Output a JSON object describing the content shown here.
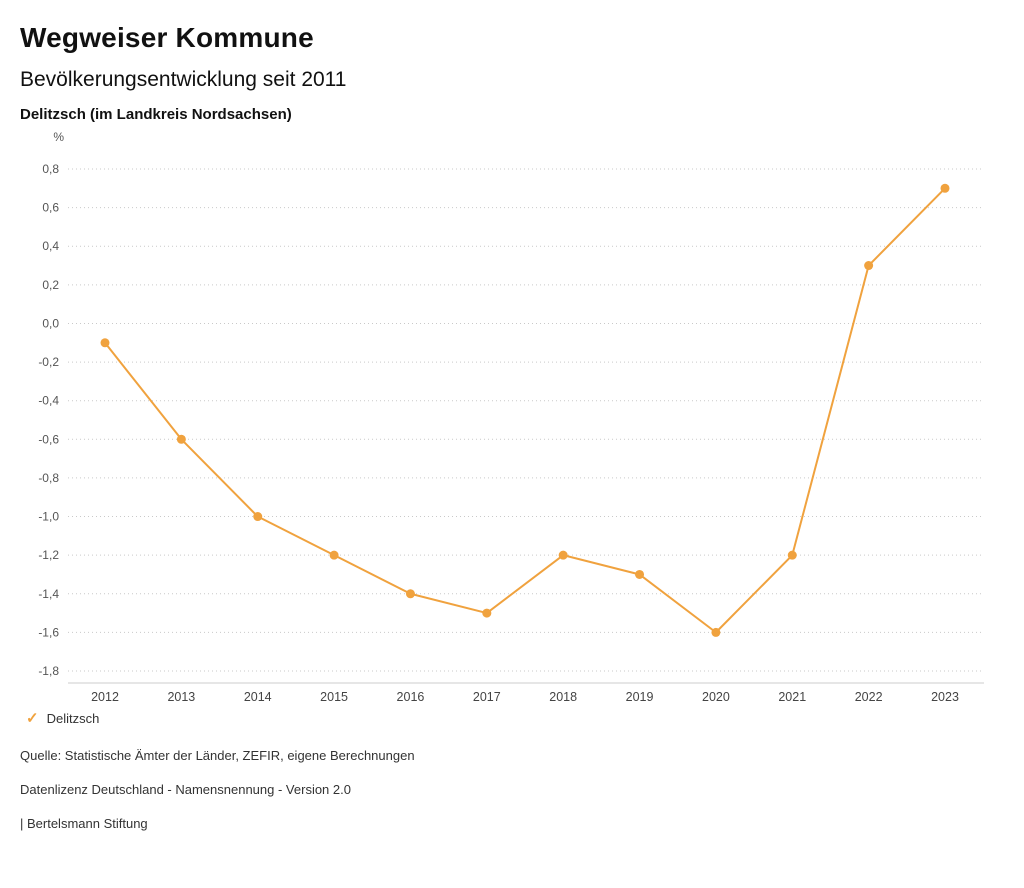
{
  "header": {
    "title": "Wegweiser Kommune",
    "subtitle": "Bevölkerungsentwicklung seit 2011",
    "location": "Delitzsch (im Landkreis Nordsachsen)"
  },
  "chart_data": {
    "type": "line",
    "title": "Bevölkerungsentwicklung seit 2011",
    "unit_label": "%",
    "categories": [
      "2012",
      "2013",
      "2014",
      "2015",
      "2016",
      "2017",
      "2018",
      "2019",
      "2020",
      "2021",
      "2022",
      "2023"
    ],
    "series": [
      {
        "name": "Delitzsch",
        "values": [
          -0.1,
          -0.6,
          -1.0,
          -1.2,
          -1.4,
          -1.5,
          -1.2,
          -1.3,
          -1.6,
          -1.2,
          0.3,
          0.7
        ]
      }
    ],
    "ylim": [
      -1.8,
      0.8
    ],
    "ytick_step": 0.2,
    "grid": true,
    "legend_position": "bottom",
    "line_color": "#f0a23e",
    "grid_color": "#c9c9c9"
  },
  "icons": {
    "check": "✓"
  },
  "legend": {
    "items": [
      {
        "label": "Delitzsch",
        "color": "#f0a23e",
        "icon": "check-icon"
      }
    ]
  },
  "footer": {
    "source": "Quelle: Statistische Ämter der Länder, ZEFIR, eigene Berechnungen",
    "license": "Datenlizenz Deutschland - Namensnennung - Version 2.0",
    "publisher": "| Bertelsmann Stiftung"
  }
}
